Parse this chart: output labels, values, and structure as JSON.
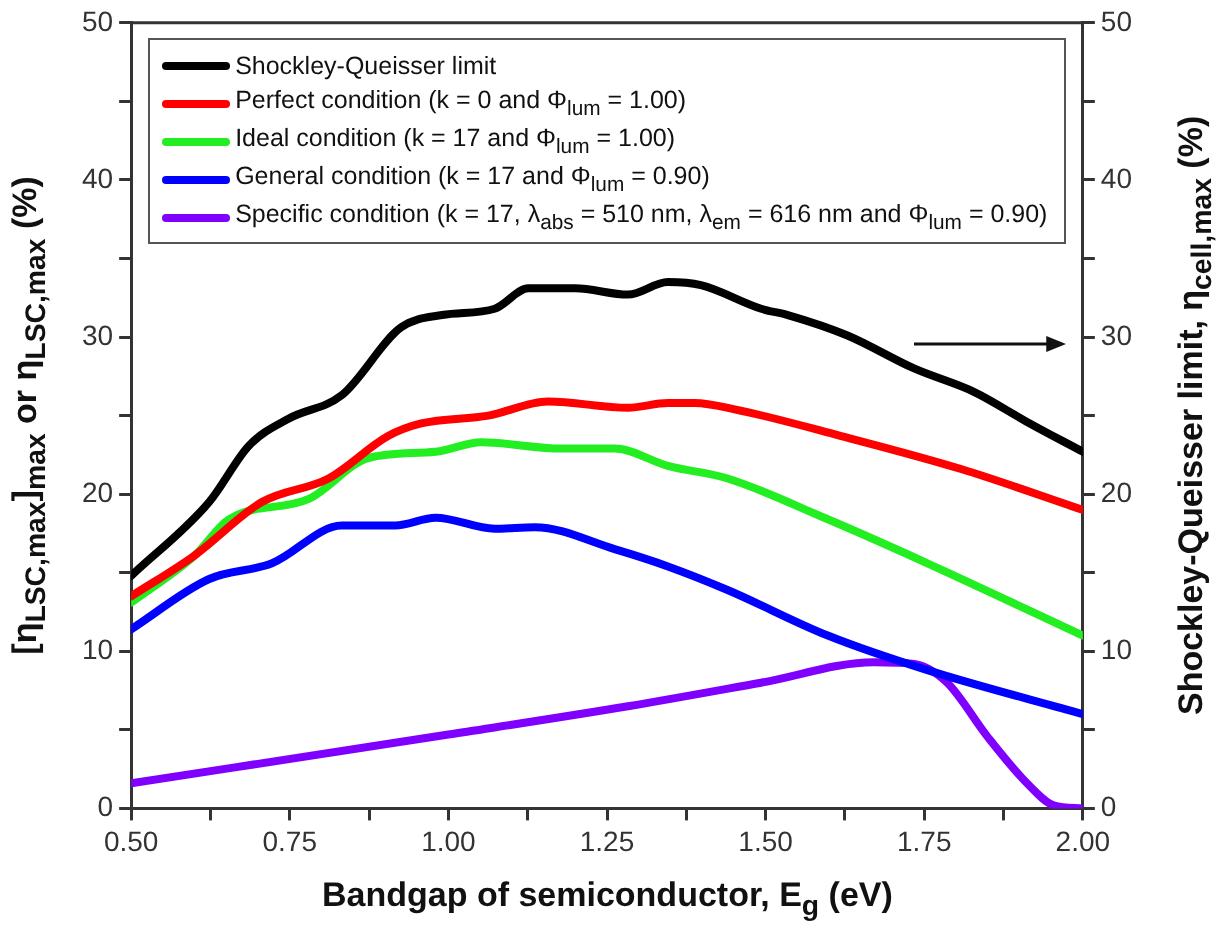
{
  "chart_data": {
    "type": "line",
    "xlabel": "Bandgap of semiconductor, E$_{g}$ (eV)",
    "ylabel": "[η$_{LSC,max}$]$_{max}$ or η$_{LSC,max}$ (%)",
    "y2label": "Shockley-Queisser limit, η$_{cell,max}$ (%)",
    "xlim": [
      0.5,
      2.0
    ],
    "xticks": [
      {
        "value": 0.5,
        "label": "0.50"
      },
      {
        "value": 0.625,
        "label": null
      },
      {
        "value": 0.75,
        "label": "0.75"
      },
      {
        "value": 0.875,
        "label": null
      },
      {
        "value": 1.0,
        "label": "1.00"
      },
      {
        "value": 1.125,
        "label": null
      },
      {
        "value": 1.25,
        "label": "1.25"
      },
      {
        "value": 1.375,
        "label": null
      },
      {
        "value": 1.5,
        "label": "1.50"
      },
      {
        "value": 1.625,
        "label": null
      },
      {
        "value": 1.75,
        "label": "1.75"
      },
      {
        "value": 1.875,
        "label": null
      },
      {
        "value": 2.0,
        "label": "2.00"
      }
    ],
    "ylim": [
      0,
      50
    ],
    "yticks": [
      0,
      {
        "value": 5,
        "label": null
      },
      10,
      {
        "value": 15,
        "label": null
      },
      20,
      {
        "value": 25,
        "label": null
      },
      30,
      {
        "value": 35,
        "label": null
      },
      40,
      {
        "value": 45,
        "label": null
      },
      50
    ],
    "y2lim": [
      0,
      50
    ],
    "y2ticks": [
      0,
      {
        "value": 5,
        "label": null
      },
      10,
      {
        "value": 15,
        "label": null
      },
      20,
      {
        "value": 25,
        "label": null
      },
      30,
      {
        "value": 35,
        "label": null
      },
      40,
      {
        "value": 45,
        "label": null
      },
      50
    ],
    "legend": "top",
    "grid": false,
    "marker": "none",
    "line_style": "solid",
    "series": [
      {
        "name": "Shockley-Queisser limit",
        "color": "#000000",
        "axis": "y2",
        "x": [
          0.5,
          0.623,
          0.686,
          0.748,
          0.832,
          0.925,
          0.99,
          1.073,
          1.126,
          1.2,
          1.283,
          1.346,
          1.398,
          1.493,
          1.535,
          1.629,
          1.734,
          1.829,
          1.912,
          2.0
        ],
        "values": [
          14.8,
          19.5,
          23.1,
          24.8,
          26.3,
          30.6,
          31.4,
          31.8,
          33.1,
          33.1,
          32.7,
          33.5,
          33.3,
          31.8,
          31.4,
          30.1,
          28.0,
          26.5,
          24.6,
          22.7
        ]
      },
      {
        "name": "Perfect condition (k = 0 and Φ$_{lum}$ = 1.00)",
        "color": "#ff0000",
        "x": [
          0.5,
          0.6,
          0.706,
          0.811,
          0.905,
          0.957,
          1.063,
          1.157,
          1.283,
          1.346,
          1.388,
          1.451,
          1.619,
          1.808,
          2.0
        ],
        "values": [
          13.5,
          16.1,
          19.5,
          21.0,
          23.7,
          24.5,
          25.0,
          25.9,
          25.5,
          25.8,
          25.8,
          25.4,
          23.7,
          21.6,
          19.0
        ]
      },
      {
        "name": "Ideal condition (k = 17 and Φ$_{lum}$ = 1.00)",
        "color": "#22ee22",
        "x": [
          0.5,
          0.6,
          0.654,
          0.78,
          0.874,
          0.98,
          1.052,
          1.178,
          1.262,
          1.346,
          1.44,
          1.598,
          1.755,
          2.0
        ],
        "values": [
          13.1,
          16.1,
          18.4,
          19.7,
          22.3,
          22.7,
          23.3,
          22.9,
          22.9,
          21.8,
          21.0,
          18.4,
          15.6,
          11.0
        ]
      },
      {
        "name": "General condition (k = 17 and Φ$_{lum}$ = 0.90)",
        "color": "#0000ff",
        "x": [
          0.5,
          0.623,
          0.722,
          0.832,
          0.916,
          0.98,
          1.073,
          1.136,
          1.262,
          1.346,
          1.44,
          1.598,
          1.755,
          2.0
        ],
        "values": [
          11.4,
          14.6,
          15.6,
          18.0,
          18.0,
          18.5,
          17.8,
          17.9,
          16.5,
          15.4,
          13.9,
          11.0,
          8.8,
          6.0
        ]
      },
      {
        "name": "Specific condition (k = 17, λ$_{abs}$ = 510 nm, λ$_{em}$ = 616 nm and Φ$_{lum}$ = 0.90)",
        "color": "#8000ff",
        "x": [
          0.5,
          1.0,
          1.283,
          1.493,
          1.671,
          1.734,
          1.786,
          1.849,
          1.912,
          1.954,
          2.0
        ],
        "values": [
          1.6,
          4.7,
          6.5,
          8.0,
          9.3,
          9.2,
          8.0,
          4.6,
          1.6,
          0.2,
          0
        ]
      }
    ]
  }
}
